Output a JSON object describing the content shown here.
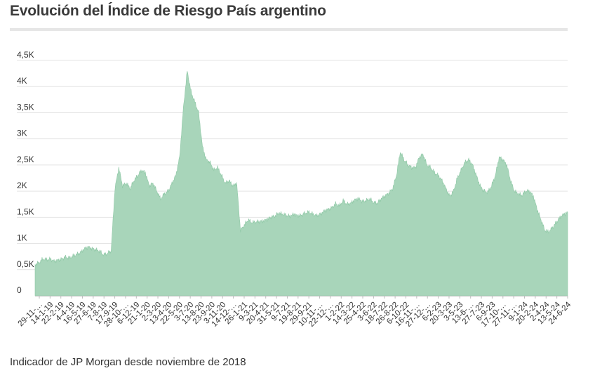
{
  "title": "Evolución del Índice de Riesgo País argentino",
  "footer": "Indicador de JP Morgan desde noviembre de 2018",
  "chart_data": {
    "type": "area",
    "title": "Evolución del Índice de Riesgo País argentino",
    "xlabel": "",
    "ylabel": "",
    "ylim": [
      0,
      4500
    ],
    "y_ticks": [
      {
        "value": 0,
        "label": "0"
      },
      {
        "value": 500,
        "label": "0,5K"
      },
      {
        "value": 1000,
        "label": "1K"
      },
      {
        "value": 1500,
        "label": "1,5K"
      },
      {
        "value": 2000,
        "label": "2K"
      },
      {
        "value": 2500,
        "label": "2,5K"
      },
      {
        "value": 3000,
        "label": "3K"
      },
      {
        "value": 3500,
        "label": "3,5K"
      },
      {
        "value": 4000,
        "label": "4K"
      },
      {
        "value": 4500,
        "label": "4,5K"
      }
    ],
    "x_tick_labels": [
      "29-11-…",
      "14-1-19",
      "22-2-19",
      "4-4-19",
      "16-5-19",
      "27-6-19",
      "7-8-19",
      "17-9-19",
      "28-10-…",
      "6-12-19",
      "21-1-20",
      "2-3-20",
      "13-4-20",
      "22-5-20",
      "3-7-20",
      "13-8-20",
      "23-9-20",
      "3-11-20",
      "14-12-…",
      "26-1-21",
      "9-3-21",
      "20-4-21",
      "31-5-21",
      "9-7-21",
      "19-8-21",
      "29-9-21",
      "10-11-…",
      "22-12-…",
      "1-2-22",
      "14-3-22",
      "25-4-22",
      "3-6-22",
      "18-7-22",
      "26-8-22",
      "6-10-22",
      "16-11-…",
      "27-12-…",
      "6-2-23",
      "20-3-23",
      "3-5-23",
      "13-6-…",
      "27-7-23",
      "6-9-23",
      "17-10-…",
      "27-11-…",
      "9-1-24",
      "20-2-24",
      "2-4-24",
      "13-5-24",
      "24-6-24"
    ],
    "series": [
      {
        "name": "Riesgo País",
        "color": "#a8d5ba",
        "x_range": [
          0,
          1
        ],
        "values": [
          600,
          630,
          700,
          690,
          700,
          660,
          680,
          700,
          740,
          720,
          760,
          790,
          830,
          900,
          930,
          900,
          880,
          850,
          780,
          810,
          860,
          2050,
          2450,
          2100,
          2150,
          2050,
          2200,
          2300,
          2400,
          2350,
          2100,
          2150,
          2000,
          1850,
          1950,
          2000,
          2150,
          2300,
          2650,
          3600,
          4300,
          3900,
          3700,
          3500,
          2850,
          2600,
          2550,
          2400,
          2450,
          2300,
          2150,
          2200,
          2100,
          2150,
          1250,
          1350,
          1450,
          1400,
          1410,
          1420,
          1430,
          1460,
          1500,
          1520,
          1580,
          1560,
          1540,
          1520,
          1560,
          1530,
          1540,
          1580,
          1600,
          1560,
          1530,
          1560,
          1620,
          1650,
          1680,
          1760,
          1720,
          1820,
          1750,
          1770,
          1830,
          1860,
          1800,
          1820,
          1850,
          1780,
          1770,
          1860,
          1910,
          1960,
          2050,
          2300,
          2750,
          2600,
          2500,
          2450,
          2450,
          2650,
          2700,
          2500,
          2450,
          2350,
          2300,
          2200,
          2050,
          1900,
          2000,
          2250,
          2400,
          2550,
          2600,
          2500,
          2300,
          2100,
          2000,
          1980,
          2100,
          2300,
          2650,
          2600,
          2500,
          2200,
          2000,
          1950,
          1920,
          2000,
          2000,
          1900,
          1650,
          1450,
          1250,
          1220,
          1300,
          1400,
          1500,
          1560,
          1590
        ]
      }
    ]
  }
}
